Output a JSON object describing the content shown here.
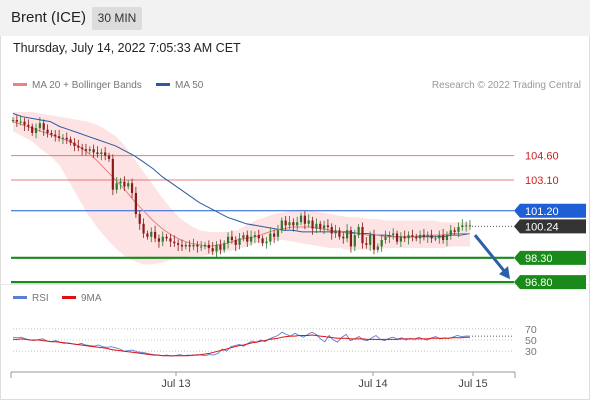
{
  "header": {
    "instrument": "Brent (ICE)",
    "timeframe": "30 MIN"
  },
  "timestamp": "Thursday, July 14, 2022 7:05:33 AM CET",
  "legend": {
    "ma_bb": {
      "label": "MA 20 + Bollinger Bands",
      "color": "#f08080"
    },
    "ma50": {
      "label": "MA 50",
      "color": "#2c5aa0"
    },
    "rsi": {
      "label": "RSI",
      "color": "#5b7fd6"
    },
    "ma9": {
      "label": "9MA",
      "color": "#e01010"
    }
  },
  "copyright": "Research © 2022 Trading Central",
  "colors": {
    "up": "#8b1a1a",
    "down": "#2a7a2a",
    "resistance": "#e05050",
    "pivot": "#1f5fd6",
    "support": "#1a8a1a",
    "last": "#333333",
    "arrow": "#2b5fa8",
    "band_fill": "#fde3e3"
  },
  "chart_data": [
    {
      "type": "candlestick",
      "ylim": [
        95.7,
        107.6
      ],
      "x_ticks": [
        "Jul 13",
        "Jul 14",
        "Jul 15"
      ],
      "levels": [
        {
          "label": "104.60",
          "value": 104.6,
          "kind": "resistance"
        },
        {
          "label": "103.10",
          "value": 103.1,
          "kind": "resistance"
        },
        {
          "label": "101.20",
          "value": 101.2,
          "kind": "pivot"
        },
        {
          "label": "100.24",
          "value": 100.24,
          "kind": "last"
        },
        {
          "label": "98.30",
          "value": 98.3,
          "kind": "support"
        },
        {
          "label": "96.80",
          "value": 96.8,
          "kind": "support"
        }
      ],
      "closes": [
        106.8,
        106.7,
        106.7,
        106.5,
        106.4,
        106.0,
        106.3,
        106.6,
        106.2,
        106.0,
        105.9,
        105.8,
        105.7,
        105.7,
        105.6,
        105.4,
        105.2,
        105.1,
        105.0,
        104.9,
        105.0,
        104.8,
        104.7,
        104.8,
        104.6,
        104.4,
        102.5,
        102.9,
        103.0,
        102.7,
        102.9,
        102.3,
        101.0,
        100.4,
        99.8,
        99.6,
        99.9,
        99.5,
        99.3,
        99.6,
        99.5,
        99.3,
        99.2,
        99.1,
        99.0,
        99.1,
        99.0,
        99.1,
        99.0,
        99.0,
        99.1,
        98.9,
        98.7,
        99.1,
        98.8,
        99.2,
        99.6,
        99.4,
        99.1,
        99.5,
        99.7,
        99.3,
        99.6,
        99.7,
        99.5,
        99.2,
        99.3,
        99.8,
        99.6,
        100.0,
        100.6,
        100.3,
        100.5,
        100.3,
        100.5,
        100.9,
        100.4,
        100.6,
        100.1,
        100.4,
        100.1,
        100.3,
        100.2,
        99.8,
        100.0,
        99.6,
        99.5,
        100.0,
        99.0,
        99.7,
        100.2,
        99.2,
        99.1,
        99.7,
        98.8,
        99.0,
        99.4,
        99.6,
        99.7,
        99.8,
        99.3,
        99.6,
        99.5,
        99.7,
        99.6,
        99.5,
        99.7,
        99.6,
        99.7,
        99.5,
        99.5,
        99.7,
        99.4,
        99.7,
        100.0,
        99.9,
        100.2,
        100.3,
        100.3,
        100.3
      ],
      "ma50": [
        107.2,
        107.0,
        106.9,
        106.8,
        106.7,
        106.4,
        106.2,
        106.0,
        105.8,
        105.6,
        105.4,
        105.2,
        104.9,
        104.6,
        104.2,
        103.8,
        103.3,
        102.9,
        102.5,
        102.1,
        101.7,
        101.4,
        101.1,
        100.8,
        100.6,
        100.4,
        100.3,
        100.2,
        100.1,
        100.0,
        100.0,
        99.9,
        99.9,
        99.9,
        99.9,
        99.9,
        99.9,
        99.8,
        99.8,
        99.7,
        99.7,
        99.6,
        99.6,
        99.6,
        99.6,
        99.6,
        99.6,
        99.7,
        99.7,
        99.8
      ],
      "ma20": [
        106.7,
        106.5,
        106.3,
        106.1,
        105.9,
        105.7,
        105.5,
        105.2,
        104.8,
        104.3,
        103.7,
        103.1,
        102.5,
        101.8,
        101.2,
        100.6,
        100.1,
        99.7,
        99.4,
        99.2,
        99.1,
        99.0,
        99.1,
        99.2,
        99.4,
        99.5,
        99.6,
        99.8,
        100.0,
        100.1,
        100.2,
        100.2,
        100.2,
        100.1,
        100.0,
        99.9,
        99.8,
        99.8,
        99.7,
        99.7,
        99.6,
        99.6,
        99.6,
        99.6,
        99.7,
        99.7,
        99.7,
        99.8,
        99.8,
        99.8
      ],
      "bb_upper": [
        107.3,
        107.3,
        107.3,
        107.2,
        107.1,
        107.0,
        106.9,
        106.8,
        106.7,
        106.5,
        106.2,
        105.8,
        105.2,
        104.4,
        103.6,
        102.8,
        102.0,
        101.3,
        100.7,
        100.3,
        100.0,
        99.9,
        99.9,
        99.9,
        100.0,
        100.3,
        100.6,
        100.8,
        101.0,
        101.1,
        101.2,
        101.3,
        101.2,
        101.1,
        101.0,
        100.9,
        100.8,
        100.8,
        100.7,
        100.7,
        100.6,
        100.6,
        100.6,
        100.6,
        100.6,
        100.6,
        100.5,
        100.5,
        100.5,
        100.5
      ],
      "bb_lower": [
        106.1,
        105.8,
        105.5,
        105.0,
        104.6,
        104.0,
        103.0,
        102.0,
        101.0,
        100.2,
        99.5,
        98.9,
        98.4,
        98.1,
        97.9,
        97.9,
        98.0,
        98.2,
        98.3,
        98.4,
        98.4,
        98.5,
        98.6,
        98.7,
        98.8,
        99.0,
        99.2,
        99.3,
        99.4,
        99.4,
        99.3,
        99.2,
        99.1,
        99.0,
        98.9,
        98.9,
        98.8,
        98.8,
        98.8,
        98.8,
        98.9,
        98.9,
        98.9,
        98.9,
        98.9,
        98.9,
        98.9,
        99.0,
        99.0,
        99.0
      ]
    },
    {
      "type": "line",
      "ylim": [
        0,
        100
      ],
      "y_ticks": [
        "70",
        "50",
        "30"
      ],
      "series": [
        {
          "name": "RSI",
          "values": [
            55,
            54,
            55,
            52,
            50,
            49,
            51,
            52,
            48,
            47,
            49,
            46,
            44,
            45,
            43,
            42,
            44,
            41,
            40,
            39,
            41,
            38,
            37,
            38,
            36,
            34,
            30,
            31,
            32,
            29,
            28,
            27,
            25,
            24,
            23,
            22,
            23,
            21,
            22,
            24,
            22,
            23,
            22,
            24,
            23,
            22,
            24,
            23,
            26,
            34,
            30,
            38,
            40,
            42,
            39,
            44,
            48,
            46,
            50,
            47,
            52,
            55,
            58,
            64,
            60,
            57,
            62,
            58,
            55,
            60,
            64,
            60,
            52,
            47,
            58,
            50,
            46,
            55,
            60,
            49,
            52,
            56,
            50,
            49,
            54,
            58,
            51,
            49,
            53,
            55,
            52,
            54,
            50,
            53,
            51,
            55,
            52,
            50,
            54,
            56,
            52,
            54,
            53,
            55,
            58,
            56,
            57,
            57
          ]
        },
        {
          "name": "9MA",
          "values": [
            51,
            51,
            52,
            51,
            50,
            50,
            50,
            49,
            48,
            47,
            47,
            46,
            45,
            44,
            43,
            42,
            41,
            40,
            39,
            38,
            37,
            36,
            35,
            33,
            32,
            31,
            30,
            29,
            28,
            27,
            26,
            25,
            24,
            23,
            23,
            22,
            22,
            22,
            22,
            22,
            22,
            22,
            23,
            23,
            24,
            25,
            26,
            28,
            30,
            32,
            34,
            36,
            38,
            40,
            41,
            43,
            45,
            46,
            48,
            49,
            51,
            52,
            53,
            55,
            56,
            57,
            57,
            58,
            58,
            58,
            59,
            58,
            57,
            56,
            55,
            54,
            53,
            53,
            53,
            52,
            52,
            52,
            52,
            51,
            51,
            51,
            51,
            51,
            51,
            51,
            51,
            52,
            52,
            52,
            52,
            52,
            52,
            52,
            53,
            53,
            53,
            53,
            53,
            54,
            54,
            54,
            55,
            55
          ]
        }
      ]
    }
  ]
}
